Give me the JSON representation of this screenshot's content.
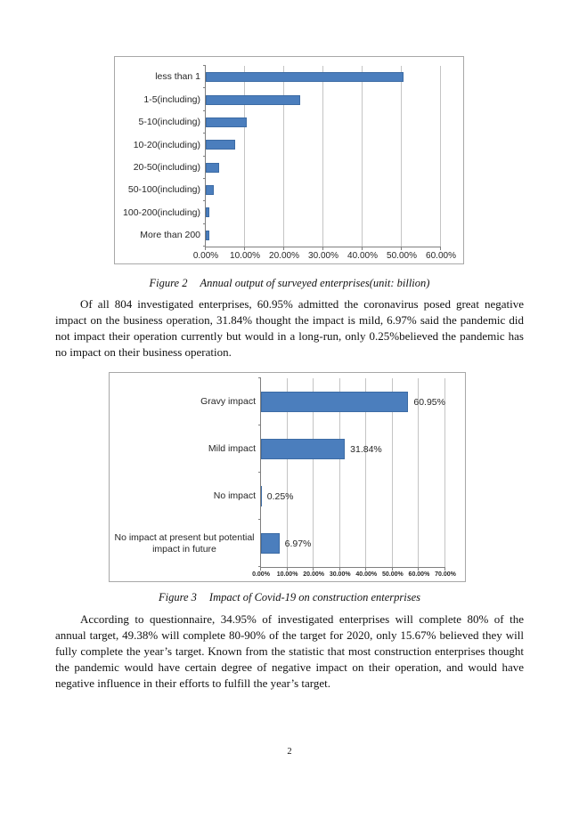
{
  "page_number": "2",
  "captions": {
    "figure2": {
      "label": "Figure 2",
      "text": "Annual output of surveyed enterprises(unit: billion)"
    },
    "figure3": {
      "label": "Figure 3",
      "text": "Impact of Covid-19 on construction enterprises"
    }
  },
  "paragraphs": {
    "p1": "Of all 804 investigated enterprises, 60.95% admitted the coronavirus posed great negative impact on the business operation, 31.84% thought the impact is mild, 6.97% said the pandemic did not impact their operation currently but would in a long-run, only 0.25%believed the pandemic has no impact on their business operation.",
    "p2": "According to questionnaire, 34.95% of investigated enterprises will complete 80% of the annual target, 49.38% will complete 80-90% of the target for 2020, only 15.67% believed they will fully complete the year’s target. Known from the statistic that most construction enterprises thought the pandemic would have certain degree of negative impact on their operation, and would have negative influence in their efforts to fulfill the year’s target."
  },
  "chart_data": [
    {
      "type": "bar",
      "orientation": "horizontal",
      "title": "",
      "categories": [
        "less than 1",
        "1-5(including)",
        "5-10(including)",
        "10-20(including)",
        "20-50(including)",
        "50-100(including)",
        "100-200(including)",
        "More than 200"
      ],
      "values": [
        50.5,
        24.1,
        10.5,
        7.4,
        3.4,
        2.0,
        1.0,
        1.0
      ],
      "data_labels": [],
      "x_tick_labels": [
        "0.00%",
        "10.00%",
        "20.00%",
        "30.00%",
        "40.00%",
        "50.00%",
        "60.00%"
      ],
      "xlim": [
        0,
        60
      ],
      "grid": true,
      "legend": "none",
      "bar_color": "#4b7ebd"
    },
    {
      "type": "bar",
      "orientation": "horizontal",
      "title": "",
      "categories": [
        "Gravy impact",
        "Mild impact",
        "No impact",
        "No impact at present but potential impact in future"
      ],
      "values": [
        60.95,
        31.84,
        0.25,
        6.97
      ],
      "data_labels": [
        "60.95%",
        "31.84%",
        "0.25%",
        "6.97%"
      ],
      "x_tick_labels": [
        "0.00%",
        "10.00%",
        "20.00%",
        "30.00%",
        "40.00%",
        "50.00%",
        "60.00%",
        "70.00%"
      ],
      "xlim": [
        0,
        70
      ],
      "grid": true,
      "legend": "none",
      "bar_color": "#4b7ebd"
    }
  ]
}
